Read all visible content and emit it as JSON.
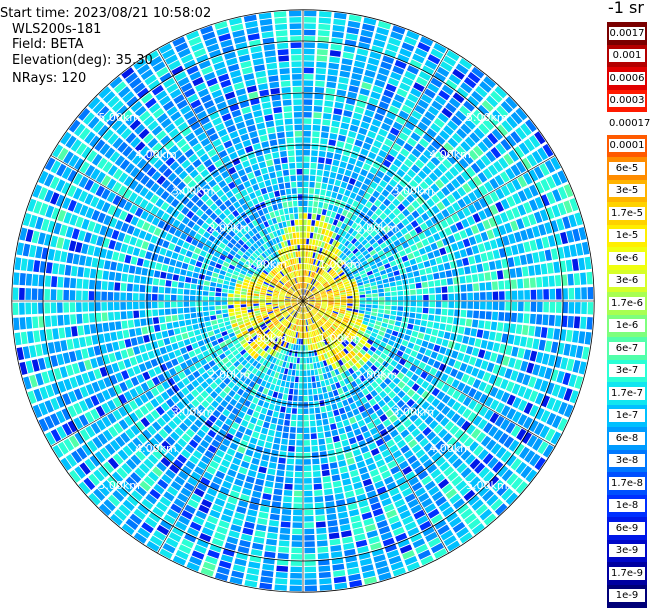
{
  "header": {
    "start_time": "Start time: 2023/08/21 10:58:02",
    "instrument": "WLS200s-181",
    "field": "Field: BETA",
    "elevation": "Elevation(deg): 35.30",
    "nrays": "NRays: 120"
  },
  "colorbar": {
    "unit_label": "-1 sr",
    "labels": [
      "0.0017",
      "0.001",
      "0.0006",
      "0.0003",
      "0.00017",
      "0.0001",
      "6e-5",
      "3e-5",
      "1.7e-5",
      "1e-5",
      "6e-6",
      "3e-6",
      "1.7e-6",
      "1e-6",
      "6e-7",
      "3e-7",
      "1.7e-7",
      "1e-7",
      "6e-8",
      "3e-8",
      "1.7e-8",
      "1e-8",
      "6e-9",
      "3e-9",
      "1.7e-9",
      "1e-9"
    ],
    "colors": [
      "#7a0000",
      "#b30000",
      "#e10000",
      "#ff1a00",
      "#ffffff",
      "#ff5a00",
      "#ff8c00",
      "#ffb400",
      "#ffd200",
      "#ffee00",
      "#f0ff10",
      "#d6ff2a",
      "#a8ff52",
      "#7dff7d",
      "#52ffaa",
      "#2affd6",
      "#10e6f0",
      "#00c0ff",
      "#009cff",
      "#0078ff",
      "#0050ff",
      "#0030ff",
      "#0018e8",
      "#0008c8",
      "#0000a0",
      "#000078"
    ]
  },
  "chart_data": {
    "type": "heatmap",
    "projection": "polar-ppi",
    "field": "BETA",
    "elevation_deg": 35.3,
    "nrays": 120,
    "range_rings_km": [
      1.0,
      2.0,
      3.0,
      4.0,
      5.0
    ],
    "ring_labels": [
      "1.00km",
      "2.00km",
      "3.00km",
      "4.00km",
      "5.00km"
    ],
    "max_range_km": 5.6,
    "azimuth_spokes_deg": [
      0,
      30,
      60,
      90,
      120,
      150,
      180,
      210,
      240,
      270,
      300,
      330
    ],
    "ring_label_bearings_deg": [
      225,
      315,
      45,
      135
    ],
    "near_field_signal": "high (yellow-red) within ~1.5 km, low (blue) beyond",
    "grid": true
  }
}
